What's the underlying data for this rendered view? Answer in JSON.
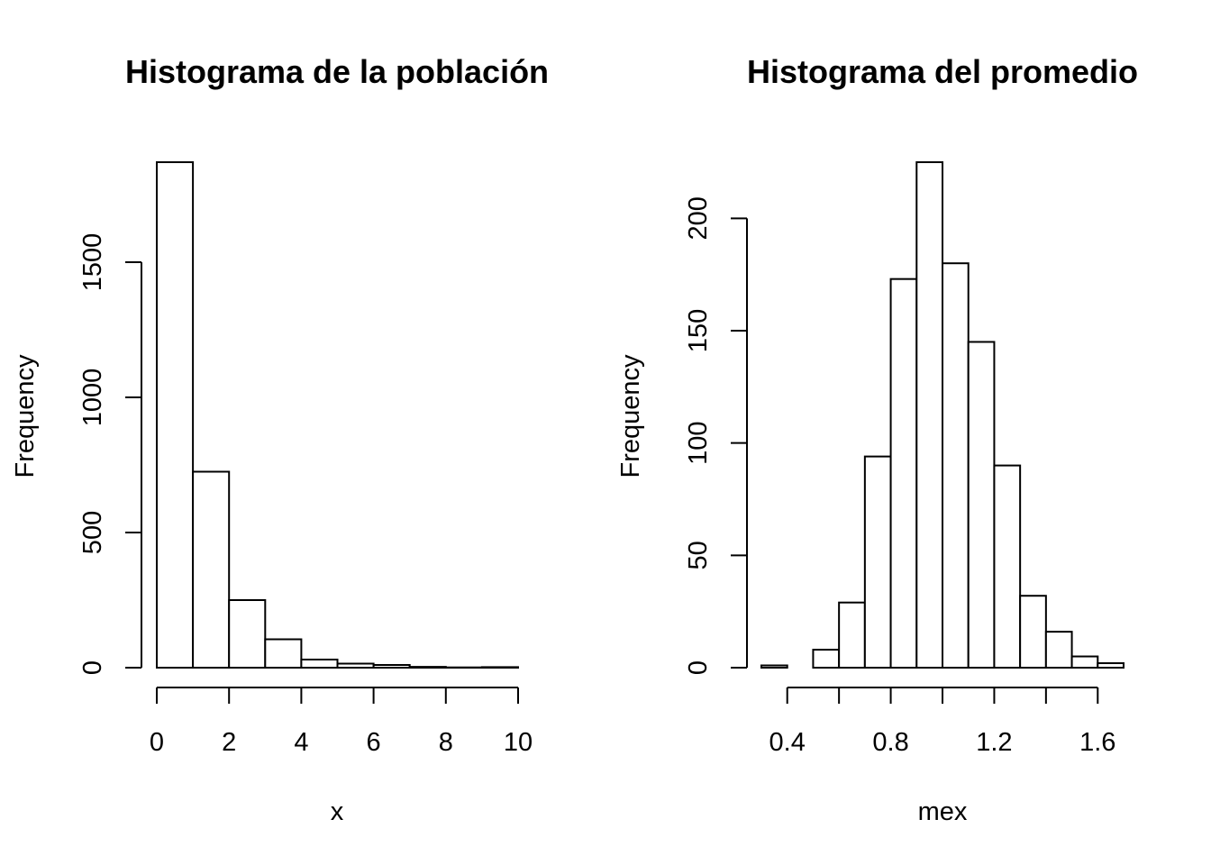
{
  "chart_data": [
    {
      "type": "bar",
      "title": "Histograma de la población",
      "xlabel": "x",
      "ylabel": "Frequency",
      "bin_edges": [
        0,
        1,
        2,
        3,
        4,
        5,
        6,
        7,
        8,
        9,
        10
      ],
      "values": [
        1870,
        725,
        250,
        105,
        30,
        15,
        10,
        3,
        1,
        2
      ],
      "xlim": [
        0,
        10
      ],
      "ylim": [
        0,
        1870
      ],
      "x_ticks": [
        0,
        2,
        4,
        6,
        8,
        10
      ],
      "x_tick_labels": [
        "0",
        "2",
        "4",
        "6",
        "8",
        "10"
      ],
      "y_ticks": [
        0,
        500,
        1000,
        1500
      ],
      "y_tick_labels": [
        "0",
        "500",
        "1000",
        "1500"
      ],
      "grid": false
    },
    {
      "type": "bar",
      "title": "Histograma del promedio",
      "xlabel": "mex",
      "ylabel": "Frequency",
      "bin_edges": [
        0.3,
        0.4,
        0.5,
        0.6,
        0.7,
        0.8,
        0.9,
        1.0,
        1.1,
        1.2,
        1.3,
        1.4,
        1.5,
        1.6,
        1.7
      ],
      "values": [
        1,
        0,
        8,
        29,
        94,
        173,
        225,
        180,
        145,
        90,
        32,
        16,
        5,
        2
      ],
      "xlim": [
        0.3,
        1.7
      ],
      "ylim": [
        0,
        225
      ],
      "x_ticks": [
        0.4,
        0.6,
        0.8,
        1.0,
        1.2,
        1.4,
        1.6
      ],
      "x_tick_labels": [
        "0.4",
        "",
        "0.8",
        "",
        "1.2",
        "",
        "1.6"
      ],
      "y_ticks": [
        0,
        50,
        100,
        150,
        200
      ],
      "y_tick_labels": [
        "0",
        "50",
        "100",
        "150",
        "200"
      ],
      "grid": false
    }
  ]
}
